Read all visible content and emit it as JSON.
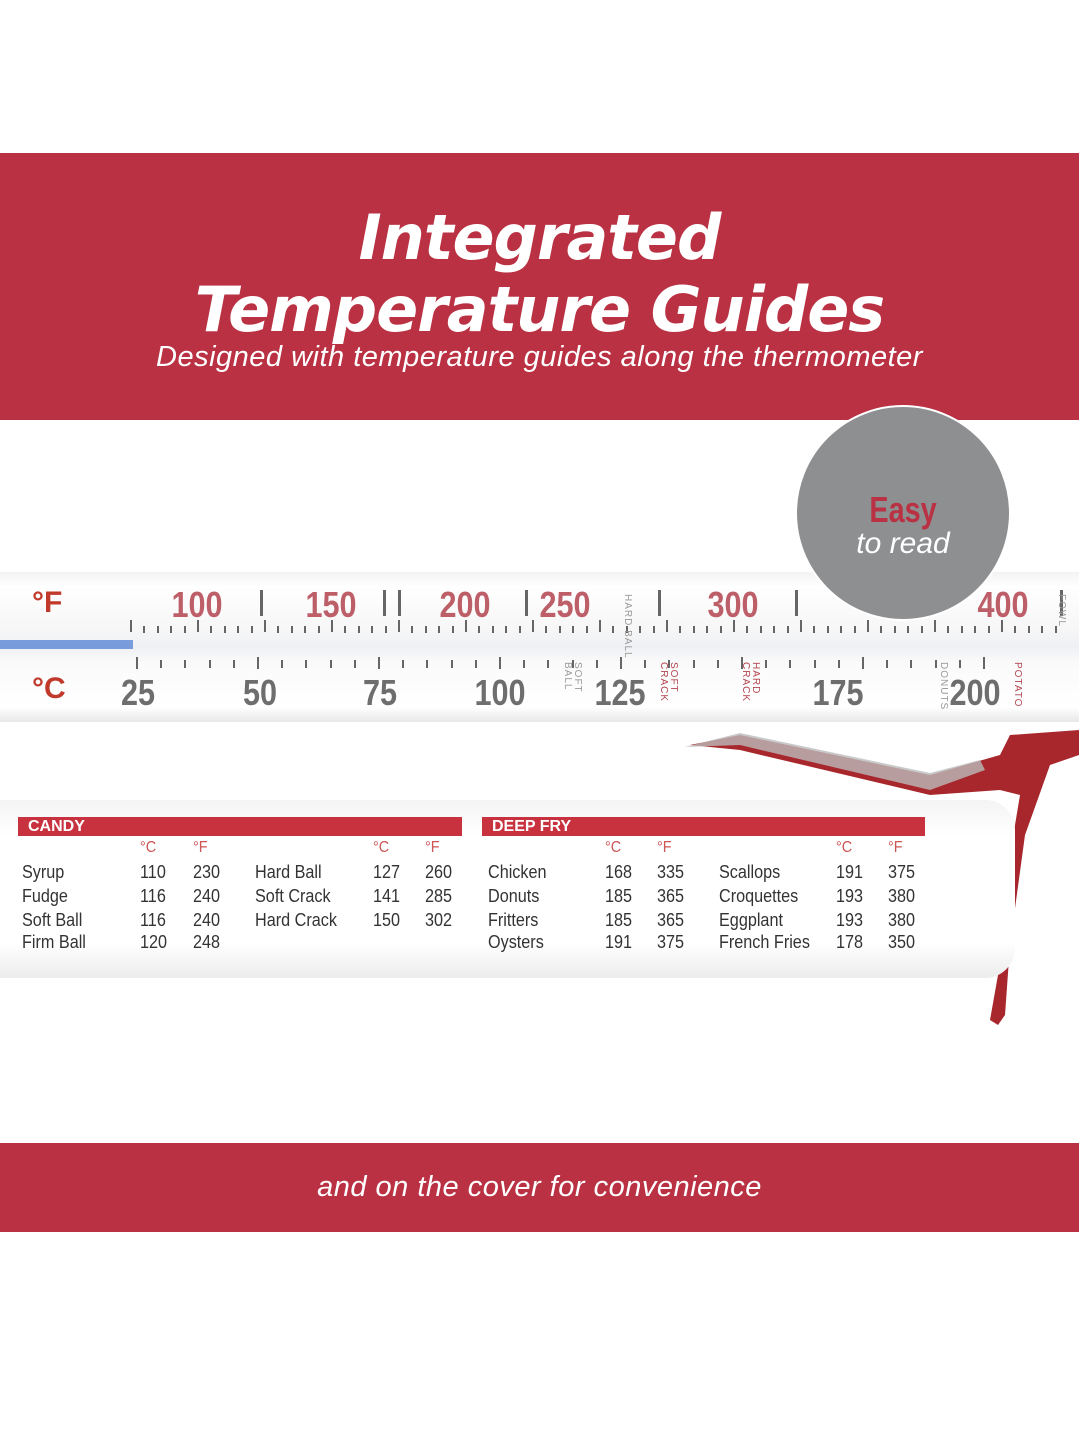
{
  "header": {
    "title_line1": "Integrated",
    "title_line2": "Temperature Guides",
    "subtitle": "Designed with temperature guides along the thermometer"
  },
  "badge": {
    "line1": "Easy",
    "line2": "to read"
  },
  "thermometer": {
    "fahrenheit_unit": "°F",
    "celsius_unit": "°C",
    "fahrenheit_labels": [
      "100",
      "150",
      "200",
      "250",
      "300",
      "400"
    ],
    "celsius_labels": [
      "25",
      "50",
      "75",
      "100",
      "125",
      "175",
      "200"
    ],
    "guides": [
      "HARD BALL",
      "SOFT BALL",
      "SOFT CRACK",
      "HARD CRACK",
      "DONUTS",
      "POTATO",
      "FOWL"
    ]
  },
  "cover": {
    "unit_c": "°C",
    "unit_f": "°F",
    "candy": {
      "title": "CANDY",
      "rows": [
        [
          "Syrup",
          "110",
          "230"
        ],
        [
          "Fudge",
          "116",
          "240"
        ],
        [
          "Soft Ball",
          "116",
          "240"
        ],
        [
          "Firm Ball",
          "120",
          "248"
        ],
        [
          "Hard Ball",
          "127",
          "260"
        ],
        [
          "Soft Crack",
          "141",
          "285"
        ],
        [
          "Hard Crack",
          "150",
          "302"
        ]
      ]
    },
    "deep_fry": {
      "title": "DEEP FRY",
      "rows": [
        [
          "Chicken",
          "168",
          "335"
        ],
        [
          "Donuts",
          "185",
          "365"
        ],
        [
          "Fritters",
          "185",
          "365"
        ],
        [
          "Oysters",
          "191",
          "375"
        ],
        [
          "Scallops",
          "191",
          "375"
        ],
        [
          "Croquettes",
          "193",
          "380"
        ],
        [
          "Eggplant",
          "193",
          "380"
        ],
        [
          "French Fries",
          "178",
          "350"
        ]
      ]
    }
  },
  "footer": {
    "text": "and on the cover for convenience"
  },
  "colors": {
    "brand_red": "#b93142",
    "badge_gray": "#8e8f91"
  }
}
